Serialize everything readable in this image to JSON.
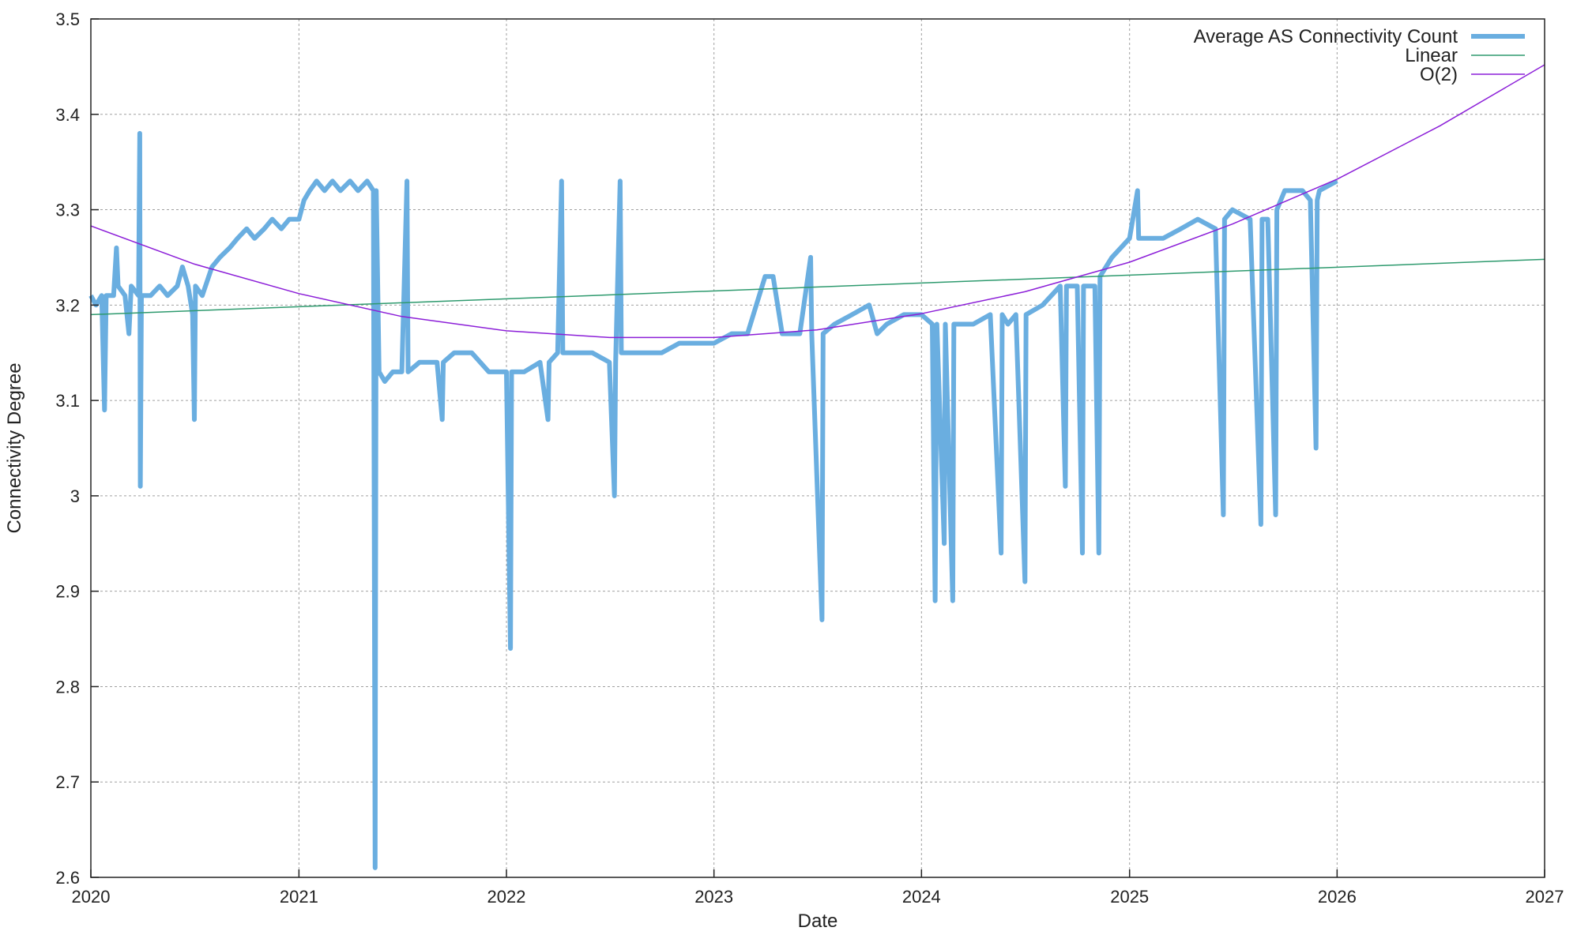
{
  "chart_data": {
    "type": "line",
    "title": "",
    "xlabel": "Date",
    "ylabel": "Connectivity Degree",
    "xlim": [
      "2020-01-01",
      "2027-01-01"
    ],
    "ylim": [
      2.6,
      3.5
    ],
    "x_ticks": [
      "2020",
      "2021",
      "2022",
      "2023",
      "2024",
      "2025",
      "2026",
      "2027"
    ],
    "y_ticks": [
      "2.6",
      "2.7",
      "2.8",
      "2.9",
      "3",
      "3.1",
      "3.2",
      "3.3",
      "3.4",
      "3.5"
    ],
    "grid": true,
    "legend_position": "top-right",
    "series": [
      {
        "name": "Average AS Connectivity Count",
        "color": "#6aaee0",
        "points": [
          [
            "2020-01-01",
            3.21
          ],
          [
            "2020-01-10",
            3.2
          ],
          [
            "2020-01-20",
            3.21
          ],
          [
            "2020-01-25",
            3.09
          ],
          [
            "2020-01-28",
            3.21
          ],
          [
            "2020-02-10",
            3.21
          ],
          [
            "2020-02-15",
            3.26
          ],
          [
            "2020-02-18",
            3.22
          ],
          [
            "2020-03-01",
            3.21
          ],
          [
            "2020-03-08",
            3.17
          ],
          [
            "2020-03-12",
            3.22
          ],
          [
            "2020-03-25",
            3.21
          ],
          [
            "2020-03-27",
            3.38
          ],
          [
            "2020-03-28",
            3.01
          ],
          [
            "2020-03-30",
            3.21
          ],
          [
            "2020-04-15",
            3.21
          ],
          [
            "2020-05-01",
            3.22
          ],
          [
            "2020-05-15",
            3.21
          ],
          [
            "2020-06-01",
            3.22
          ],
          [
            "2020-06-10",
            3.24
          ],
          [
            "2020-06-20",
            3.22
          ],
          [
            "2020-06-28",
            3.19
          ],
          [
            "2020-07-01",
            3.08
          ],
          [
            "2020-07-03",
            3.22
          ],
          [
            "2020-07-15",
            3.21
          ],
          [
            "2020-08-01",
            3.24
          ],
          [
            "2020-08-15",
            3.25
          ],
          [
            "2020-09-01",
            3.26
          ],
          [
            "2020-09-15",
            3.27
          ],
          [
            "2020-10-01",
            3.28
          ],
          [
            "2020-10-15",
            3.27
          ],
          [
            "2020-11-01",
            3.28
          ],
          [
            "2020-11-15",
            3.29
          ],
          [
            "2020-12-01",
            3.28
          ],
          [
            "2020-12-15",
            3.29
          ],
          [
            "2021-01-01",
            3.29
          ],
          [
            "2021-01-10",
            3.31
          ],
          [
            "2021-01-20",
            3.32
          ],
          [
            "2021-02-01",
            3.33
          ],
          [
            "2021-02-15",
            3.32
          ],
          [
            "2021-03-01",
            3.33
          ],
          [
            "2021-03-15",
            3.32
          ],
          [
            "2021-04-01",
            3.33
          ],
          [
            "2021-04-15",
            3.32
          ],
          [
            "2021-05-01",
            3.33
          ],
          [
            "2021-05-12",
            3.32
          ],
          [
            "2021-05-15",
            2.61
          ],
          [
            "2021-05-17",
            3.32
          ],
          [
            "2021-05-22",
            3.13
          ],
          [
            "2021-06-01",
            3.12
          ],
          [
            "2021-06-15",
            3.13
          ],
          [
            "2021-07-01",
            3.13
          ],
          [
            "2021-07-10",
            3.33
          ],
          [
            "2021-07-12",
            3.13
          ],
          [
            "2021-08-01",
            3.14
          ],
          [
            "2021-09-01",
            3.14
          ],
          [
            "2021-09-10",
            3.08
          ],
          [
            "2021-09-12",
            3.14
          ],
          [
            "2021-10-01",
            3.15
          ],
          [
            "2021-11-01",
            3.15
          ],
          [
            "2021-12-01",
            3.13
          ],
          [
            "2022-01-01",
            3.13
          ],
          [
            "2022-01-08",
            2.84
          ],
          [
            "2022-01-10",
            3.13
          ],
          [
            "2022-02-01",
            3.13
          ],
          [
            "2022-03-01",
            3.14
          ],
          [
            "2022-03-15",
            3.08
          ],
          [
            "2022-03-17",
            3.14
          ],
          [
            "2022-04-01",
            3.15
          ],
          [
            "2022-04-08",
            3.33
          ],
          [
            "2022-04-10",
            3.15
          ],
          [
            "2022-05-01",
            3.15
          ],
          [
            "2022-06-01",
            3.15
          ],
          [
            "2022-07-01",
            3.14
          ],
          [
            "2022-07-10",
            3.0
          ],
          [
            "2022-07-12",
            3.14
          ],
          [
            "2022-07-20",
            3.33
          ],
          [
            "2022-07-22",
            3.15
          ],
          [
            "2022-08-01",
            3.15
          ],
          [
            "2022-09-01",
            3.15
          ],
          [
            "2022-10-01",
            3.15
          ],
          [
            "2022-11-01",
            3.16
          ],
          [
            "2022-12-01",
            3.16
          ],
          [
            "2023-01-01",
            3.16
          ],
          [
            "2023-02-01",
            3.17
          ],
          [
            "2023-03-01",
            3.17
          ],
          [
            "2023-04-01",
            3.23
          ],
          [
            "2023-04-15",
            3.23
          ],
          [
            "2023-05-01",
            3.17
          ],
          [
            "2023-06-01",
            3.17
          ],
          [
            "2023-06-20",
            3.25
          ],
          [
            "2023-06-22",
            3.17
          ],
          [
            "2023-07-10",
            2.87
          ],
          [
            "2023-07-12",
            3.17
          ],
          [
            "2023-08-01",
            3.18
          ],
          [
            "2023-09-01",
            3.19
          ],
          [
            "2023-10-01",
            3.2
          ],
          [
            "2023-10-15",
            3.17
          ],
          [
            "2023-11-01",
            3.18
          ],
          [
            "2023-12-01",
            3.19
          ],
          [
            "2024-01-01",
            3.19
          ],
          [
            "2024-01-20",
            3.18
          ],
          [
            "2024-01-25",
            2.89
          ],
          [
            "2024-01-28",
            3.18
          ],
          [
            "2024-02-10",
            2.95
          ],
          [
            "2024-02-12",
            3.18
          ],
          [
            "2024-02-25",
            2.89
          ],
          [
            "2024-02-27",
            3.18
          ],
          [
            "2024-04-01",
            3.18
          ],
          [
            "2024-05-01",
            3.19
          ],
          [
            "2024-05-20",
            2.94
          ],
          [
            "2024-05-22",
            3.19
          ],
          [
            "2024-06-01",
            3.18
          ],
          [
            "2024-06-15",
            3.19
          ],
          [
            "2024-07-01",
            2.91
          ],
          [
            "2024-07-03",
            3.19
          ],
          [
            "2024-08-01",
            3.2
          ],
          [
            "2024-09-01",
            3.22
          ],
          [
            "2024-09-10",
            3.01
          ],
          [
            "2024-09-12",
            3.22
          ],
          [
            "2024-10-01",
            3.22
          ],
          [
            "2024-10-10",
            2.94
          ],
          [
            "2024-10-12",
            3.22
          ],
          [
            "2024-11-01",
            3.22
          ],
          [
            "2024-11-08",
            2.94
          ],
          [
            "2024-11-10",
            3.23
          ],
          [
            "2024-12-01",
            3.25
          ],
          [
            "2025-01-01",
            3.27
          ],
          [
            "2025-01-15",
            3.32
          ],
          [
            "2025-01-17",
            3.27
          ],
          [
            "2025-02-01",
            3.27
          ],
          [
            "2025-03-01",
            3.27
          ],
          [
            "2025-04-01",
            3.28
          ],
          [
            "2025-05-01",
            3.29
          ],
          [
            "2025-06-01",
            3.28
          ],
          [
            "2025-06-15",
            2.98
          ],
          [
            "2025-06-17",
            3.29
          ],
          [
            "2025-07-01",
            3.3
          ],
          [
            "2025-08-01",
            3.29
          ],
          [
            "2025-08-20",
            2.97
          ],
          [
            "2025-08-22",
            3.29
          ],
          [
            "2025-09-01",
            3.29
          ],
          [
            "2025-09-15",
            2.98
          ],
          [
            "2025-09-17",
            3.3
          ],
          [
            "2025-10-01",
            3.32
          ],
          [
            "2025-11-01",
            3.32
          ],
          [
            "2025-11-15",
            3.31
          ],
          [
            "2025-11-25",
            3.05
          ],
          [
            "2025-11-27",
            3.31
          ],
          [
            "2025-12-01",
            3.32
          ],
          [
            "2026-01-01",
            3.33
          ]
        ]
      },
      {
        "name": "Linear",
        "color": "#2e9a6e",
        "points": [
          [
            "2020-01-01",
            3.19
          ],
          [
            "2027-01-01",
            3.248
          ]
        ]
      },
      {
        "name": "O(2)",
        "color": "#8c1fd8",
        "points": [
          [
            "2020-01-01",
            3.283
          ],
          [
            "2020-07-01",
            3.243
          ],
          [
            "2021-01-01",
            3.212
          ],
          [
            "2021-07-01",
            3.188
          ],
          [
            "2022-01-01",
            3.173
          ],
          [
            "2022-07-01",
            3.166
          ],
          [
            "2023-01-01",
            3.166
          ],
          [
            "2023-07-01",
            3.174
          ],
          [
            "2024-01-01",
            3.191
          ],
          [
            "2024-07-01",
            3.214
          ],
          [
            "2025-01-01",
            3.245
          ],
          [
            "2025-07-01",
            3.285
          ],
          [
            "2026-01-01",
            3.332
          ],
          [
            "2026-07-01",
            3.388
          ],
          [
            "2027-01-01",
            3.452
          ]
        ]
      }
    ]
  }
}
